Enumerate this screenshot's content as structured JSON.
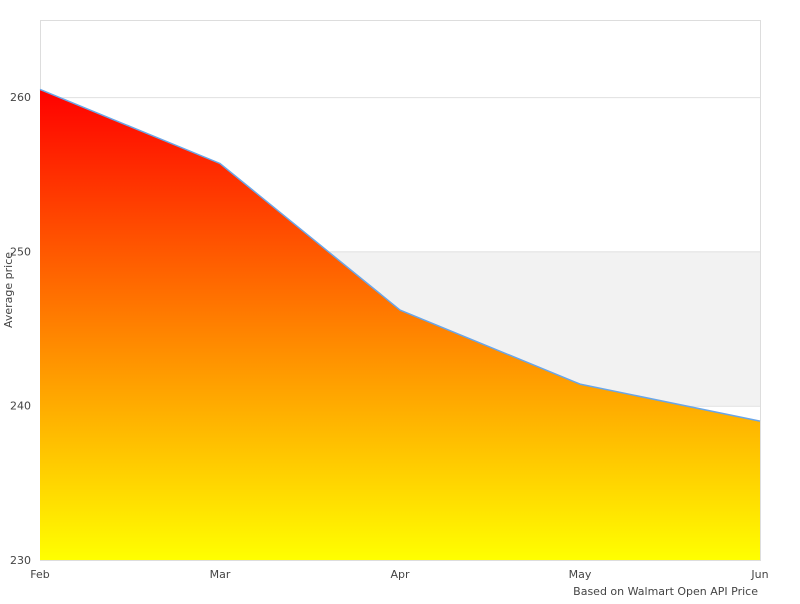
{
  "chart_data": {
    "type": "area",
    "categories": [
      "Feb",
      "Mar",
      "Apr",
      "May",
      "Jun"
    ],
    "values": [
      260.5,
      255.7,
      246.2,
      241.4,
      239.0
    ],
    "ylabel": "Average price",
    "xlabel": "Based on Walmart Open API Price",
    "ylim": [
      230,
      265
    ],
    "yticks": [
      230,
      240,
      250,
      260
    ],
    "grid": true,
    "band_color": "#f2f2f2",
    "line_color": "#6aa6e8",
    "fill_gradient": [
      "#ff0000",
      "#ff8000",
      "#ffff00"
    ]
  }
}
